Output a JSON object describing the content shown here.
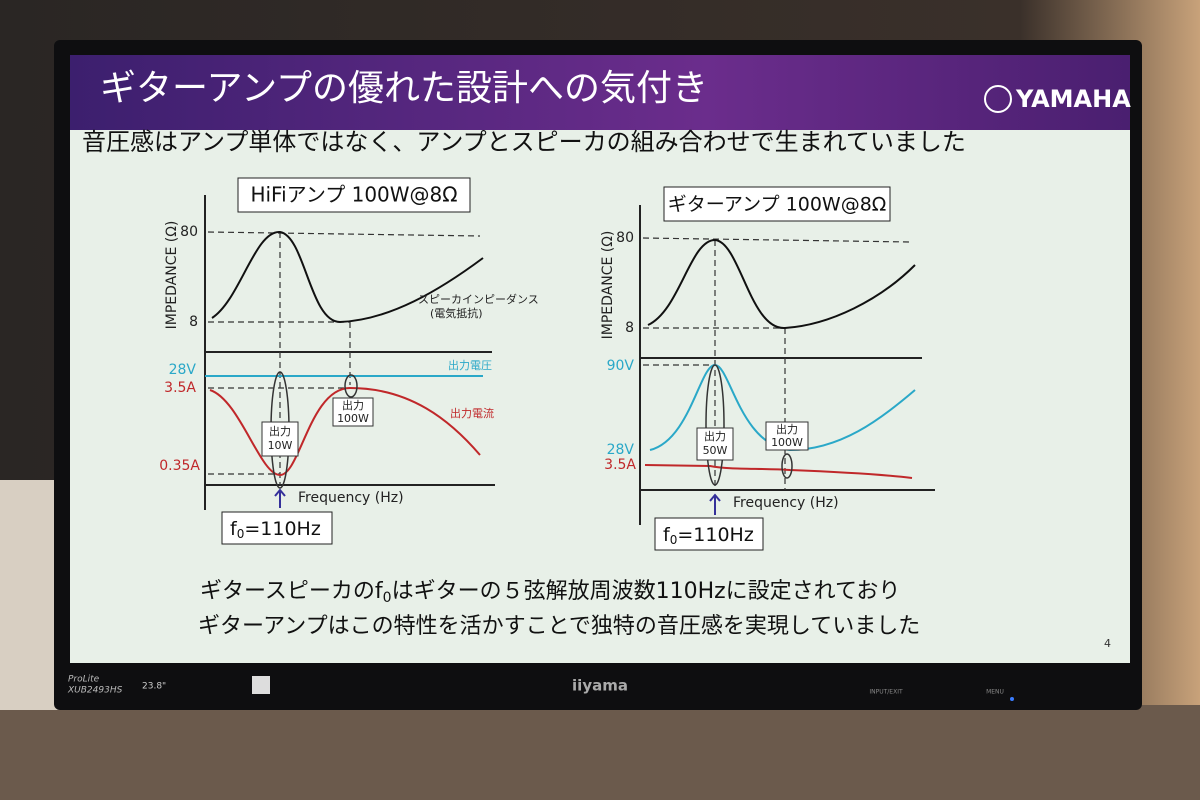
{
  "slide": {
    "title": "ギターアンプの優れた設計への気付き",
    "logo": "YAMAHA",
    "subtitle": "音圧感はアンプ単体ではなく、アンプとスピーカの組み合わせで生まれていました",
    "page_number": "4",
    "left": {
      "heading": "HiFiアンプ 100W@8Ω",
      "y_label": "IMPEDANCE (Ω)",
      "tick_high": "80",
      "tick_low": "8",
      "voltage_tick": "28V",
      "current_high": "3.5A",
      "current_low": "0.35A",
      "impedance_note": "スピーカインピーダンス",
      "impedance_note_2": "(電気抵抗)",
      "voltage_note": "出力電圧",
      "current_note": "出力電流",
      "output_a": [
        "出力",
        "10W"
      ],
      "output_b": [
        "出力",
        "100W"
      ],
      "x_label": "Frequency (Hz)",
      "f0": [
        "f",
        "0",
        "=110Hz"
      ]
    },
    "right": {
      "heading": "ギターアンプ 100W@8Ω",
      "y_label": "IMPEDANCE (Ω)",
      "tick_high": "80",
      "tick_low": "8",
      "voltage_high": "90V",
      "voltage_low": "28V",
      "current_tick": "3.5A",
      "output_a": [
        "出力",
        "50W"
      ],
      "output_b": [
        "出力",
        "100W"
      ],
      "x_label": "Frequency (Hz)",
      "f0": [
        "f",
        "0",
        "=110Hz"
      ]
    },
    "footer": {
      "line1": [
        "ギタースピーカのf",
        "0",
        "はギターの５弦解放周波数110Hzに設定されており"
      ],
      "line2": "ギターアンプはこの特性を活かすことで独特の音圧感を実現していました"
    }
  },
  "monitor": {
    "series": "ProLite",
    "model": "XUB2493HS",
    "size": "23.8\"",
    "brand": "iiyama",
    "input": "INPUT/EXIT",
    "menu": "MENU"
  }
}
